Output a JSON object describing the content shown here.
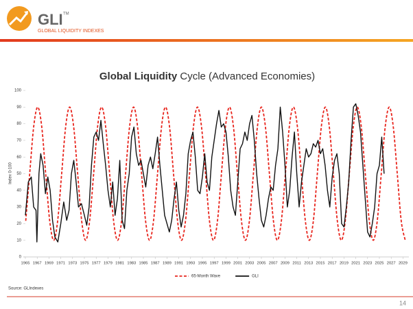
{
  "header": {
    "logo_text": "GLI",
    "logo_mark": "TM",
    "logo_subtitle": "GLOBAL LIQUIDITY INDEXES"
  },
  "chart_data": {
    "type": "line",
    "title_bold": "Global Liquidity",
    "title_rest": "Cycle (Advanced Economies)",
    "y_label": "Index 0-100",
    "xlim": [
      1965,
      2030
    ],
    "ylim": [
      0,
      100
    ],
    "xticks": [
      1965,
      1967,
      1969,
      1971,
      1973,
      1975,
      1977,
      1979,
      1981,
      1983,
      1985,
      1987,
      1989,
      1991,
      1993,
      1995,
      1997,
      1999,
      2001,
      2003,
      2005,
      2007,
      2009,
      2011,
      2013,
      2015,
      2017,
      2019,
      2021,
      2023,
      2025,
      2027,
      2029
    ],
    "yticks": [
      0,
      10,
      20,
      30,
      40,
      50,
      60,
      70,
      80,
      90,
      100
    ],
    "series": [
      {
        "name": "65-Month Wave",
        "color": "#e8241c",
        "dashed": true,
        "x": [
          1965.06,
          1965.73,
          1966.41,
          1967.09,
          1967.77,
          1968.44,
          1969.12,
          1969.8,
          1970.47,
          1971.15,
          1971.83,
          1972.5,
          1973.18,
          1973.86,
          1974.54,
          1975.21,
          1975.89,
          1976.57,
          1977.24,
          1977.92,
          1978.6,
          1979.28,
          1979.95,
          1980.63,
          1981.31,
          1981.98,
          1982.66,
          1983.34,
          1984.01,
          1984.69,
          1985.37,
          1986.05,
          1986.72,
          1987.4,
          1988.08,
          1988.75,
          1989.43,
          1990.11,
          1990.79,
          1991.46,
          1992.14,
          1992.82,
          1993.49,
          1994.17,
          1994.85,
          1995.53,
          1996.2,
          1996.88,
          1997.56,
          1998.23,
          1998.91,
          1999.59,
          2000.26,
          2000.94,
          2001.62,
          2002.3,
          2002.97,
          2003.65,
          2004.33,
          2005.0,
          2005.68,
          2006.36,
          2007.04,
          2007.71,
          2008.39,
          2009.07,
          2009.74,
          2010.42,
          2011.1,
          2011.78,
          2012.45,
          2013.13,
          2013.81,
          2014.48,
          2015.16,
          2015.84,
          2016.51,
          2017.19,
          2017.87,
          2018.55,
          2019.22,
          2019.9,
          2020.58,
          2021.25,
          2021.93,
          2022.61,
          2023.29,
          2023.96,
          2024.64,
          2025.32,
          2025.99,
          2026.67,
          2027.35,
          2028.03,
          2028.7,
          2029.38
        ],
        "values": [
          21.7,
          50,
          78.3,
          90,
          78.3,
          50,
          21.7,
          10,
          21.7,
          50,
          78.3,
          90,
          78.3,
          50,
          21.7,
          10,
          21.7,
          50,
          78.3,
          90,
          78.3,
          50,
          21.7,
          10,
          21.7,
          50,
          78.3,
          90,
          78.3,
          50,
          21.7,
          10,
          21.7,
          50,
          78.3,
          90,
          78.3,
          50,
          21.7,
          10,
          21.7,
          50,
          78.3,
          90,
          78.3,
          50,
          21.7,
          10,
          21.7,
          50,
          78.3,
          90,
          78.3,
          50,
          21.7,
          10,
          21.7,
          50,
          78.3,
          90,
          78.3,
          50,
          21.7,
          10,
          21.7,
          50,
          78.3,
          90,
          78.3,
          50,
          21.7,
          10,
          21.7,
          50,
          78.3,
          90,
          78.3,
          50,
          21.7,
          10,
          21.7,
          50,
          78.3,
          90,
          78.3,
          50,
          21.7,
          10,
          21.7,
          50,
          78.3,
          90,
          78.3,
          50,
          21.7,
          10
        ]
      },
      {
        "name": "GLI",
        "color": "#111111",
        "dashed": false,
        "x": [
          1965.0,
          1965.5,
          1966.0,
          1966.4,
          1966.8,
          1966.95,
          1967.3,
          1967.6,
          1968.0,
          1968.4,
          1968.8,
          1969.2,
          1969.6,
          1970.0,
          1970.5,
          1971.0,
          1971.5,
          1972.0,
          1972.4,
          1972.8,
          1973.2,
          1973.6,
          1974.0,
          1974.5,
          1975.0,
          1975.4,
          1975.8,
          1976.2,
          1976.6,
          1977.0,
          1977.4,
          1977.8,
          1978.2,
          1978.6,
          1979.0,
          1979.4,
          1979.8,
          1980.2,
          1980.6,
          1981.0,
          1981.4,
          1981.8,
          1982.2,
          1982.6,
          1983.0,
          1983.4,
          1983.8,
          1984.2,
          1984.6,
          1985.0,
          1985.4,
          1985.8,
          1986.2,
          1986.6,
          1987.0,
          1987.4,
          1987.8,
          1988.2,
          1988.6,
          1989.0,
          1989.4,
          1989.8,
          1990.2,
          1990.6,
          1991.0,
          1991.4,
          1991.8,
          1992.2,
          1992.6,
          1993.0,
          1993.4,
          1993.8,
          1994.2,
          1994.6,
          1995.0,
          1995.4,
          1995.8,
          1996.2,
          1996.6,
          1997.0,
          1997.4,
          1997.8,
          1998.2,
          1998.6,
          1999.0,
          1999.4,
          1999.8,
          2000.2,
          2000.6,
          2001.0,
          2001.4,
          2001.8,
          2002.2,
          2002.6,
          2003.0,
          2003.4,
          2003.8,
          2004.2,
          2004.6,
          2005.0,
          2005.4,
          2005.8,
          2006.2,
          2006.6,
          2007.0,
          2007.4,
          2007.8,
          2008.2,
          2008.6,
          2009.0,
          2009.4,
          2009.8,
          2010.2,
          2010.6,
          2011.0,
          2011.4,
          2011.8,
          2012.2,
          2012.6,
          2013.0,
          2013.4,
          2013.8,
          2014.2,
          2014.6,
          2015.0,
          2015.4,
          2015.8,
          2016.2,
          2016.6,
          2017.0,
          2017.4,
          2017.8,
          2018.2,
          2018.6,
          2019.0,
          2019.4,
          2019.8,
          2020.2,
          2020.6,
          2021.0,
          2021.4,
          2021.8,
          2022.2,
          2022.6,
          2023.0,
          2023.4,
          2023.8,
          2024.2,
          2024.6,
          2025.0,
          2025.4,
          2025.8
        ],
        "values": [
          25,
          45,
          48,
          30,
          28,
          9,
          50,
          62,
          55,
          38,
          48,
          40,
          22,
          12,
          9,
          20,
          33,
          22,
          28,
          50,
          58,
          45,
          30,
          32,
          25,
          19,
          30,
          55,
          72,
          75,
          70,
          82,
          68,
          55,
          40,
          30,
          45,
          25,
          35,
          58,
          22,
          17,
          40,
          50,
          72,
          78,
          62,
          55,
          58,
          50,
          42,
          55,
          60,
          53,
          62,
          72,
          55,
          40,
          25,
          20,
          15,
          22,
          35,
          45,
          28,
          18,
          25,
          38,
          62,
          70,
          75,
          60,
          40,
          38,
          48,
          62,
          45,
          40,
          60,
          70,
          80,
          88,
          78,
          80,
          75,
          60,
          40,
          30,
          25,
          45,
          65,
          68,
          75,
          70,
          80,
          85,
          70,
          50,
          35,
          22,
          18,
          25,
          35,
          42,
          40,
          55,
          65,
          90,
          75,
          55,
          30,
          40,
          60,
          75,
          50,
          30,
          45,
          55,
          65,
          60,
          62,
          68,
          66,
          70,
          62,
          65,
          55,
          40,
          30,
          48,
          58,
          62,
          50,
          20,
          18,
          30,
          45,
          70,
          90,
          92,
          85,
          75,
          55,
          35,
          15,
          12,
          20,
          30,
          50,
          55,
          72,
          50
        ]
      }
    ]
  },
  "footer": {
    "source": "Source: GLIndexes",
    "page_number": "14"
  }
}
